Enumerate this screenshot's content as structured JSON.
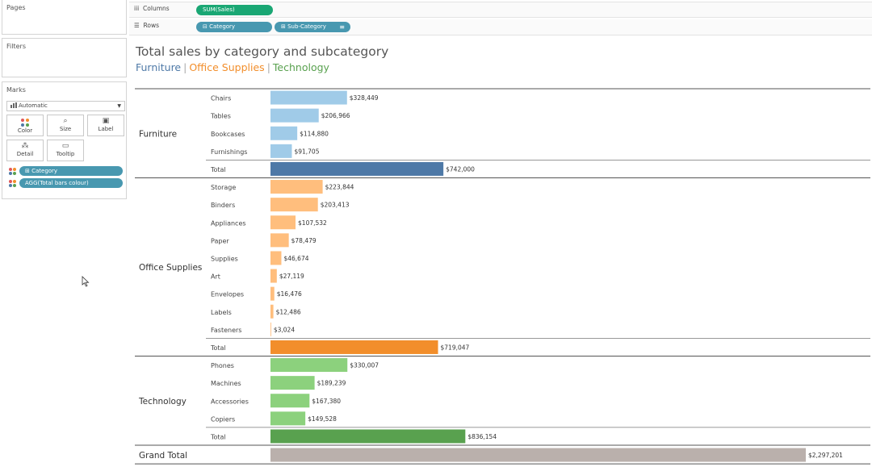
{
  "shelves": {
    "pages_title": "Pages",
    "filters_title": "Filters",
    "marks_title": "Marks",
    "mark_type": "Automatic",
    "mark_buttons": [
      {
        "label": "Color",
        "icon": "color-dots-icon"
      },
      {
        "label": "Size",
        "icon": "size-icon"
      },
      {
        "label": "Label",
        "icon": "label-icon"
      },
      {
        "label": "Detail",
        "icon": "detail-icon"
      },
      {
        "label": "Tooltip",
        "icon": "tooltip-icon"
      }
    ],
    "marks_pills": [
      "Category",
      "AGG(Total bars colour)"
    ],
    "columns_label": "Columns",
    "columns_pill": "SUM(Sales)",
    "rows_label": "Rows",
    "rows_pills": [
      "Category",
      "Sub-Category"
    ]
  },
  "colors": {
    "Furniture": "#4e79a7",
    "Office Supplies": "#f28e2b",
    "Technology": "#59a14f",
    "Furniture_light": "#a0cbe8",
    "Office Supplies_light": "#ffbe7d",
    "Technology_light": "#8cd17d",
    "grand_total": "#bab0ac",
    "pill_blue": "#4898b0",
    "pill_green": "#1aa774"
  },
  "chart_data": {
    "type": "bar",
    "orientation": "horizontal",
    "title": "Total sales by category and subcategory",
    "legend": [
      "Furniture",
      "Office Supplies",
      "Technology"
    ],
    "groups": [
      {
        "category": "Furniture",
        "items": [
          {
            "label": "Chairs",
            "value": 328449,
            "value_label": "$328,449"
          },
          {
            "label": "Tables",
            "value": 206966,
            "value_label": "$206,966"
          },
          {
            "label": "Bookcases",
            "value": 114880,
            "value_label": "$114,880"
          },
          {
            "label": "Furnishings",
            "value": 91705,
            "value_label": "$91,705"
          },
          {
            "label": "Total",
            "value": 742000,
            "value_label": "$742,000",
            "total": true
          }
        ]
      },
      {
        "category": "Office Supplies",
        "items": [
          {
            "label": "Storage",
            "value": 223844,
            "value_label": "$223,844"
          },
          {
            "label": "Binders",
            "value": 203413,
            "value_label": "$203,413"
          },
          {
            "label": "Appliances",
            "value": 107532,
            "value_label": "$107,532"
          },
          {
            "label": "Paper",
            "value": 78479,
            "value_label": "$78,479"
          },
          {
            "label": "Supplies",
            "value": 46674,
            "value_label": "$46,674"
          },
          {
            "label": "Art",
            "value": 27119,
            "value_label": "$27,119"
          },
          {
            "label": "Envelopes",
            "value": 16476,
            "value_label": "$16,476"
          },
          {
            "label": "Labels",
            "value": 12486,
            "value_label": "$12,486"
          },
          {
            "label": "Fasteners",
            "value": 3024,
            "value_label": "$3,024"
          },
          {
            "label": "Total",
            "value": 719047,
            "value_label": "$719,047",
            "total": true
          }
        ]
      },
      {
        "category": "Technology",
        "items": [
          {
            "label": "Phones",
            "value": 330007,
            "value_label": "$330,007"
          },
          {
            "label": "Machines",
            "value": 189239,
            "value_label": "$189,239"
          },
          {
            "label": "Accessories",
            "value": 167380,
            "value_label": "$167,380"
          },
          {
            "label": "Copiers",
            "value": 149528,
            "value_label": "$149,528"
          },
          {
            "label": "Total",
            "value": 836154,
            "value_label": "$836,154",
            "total": true
          }
        ]
      }
    ],
    "grand_total": {
      "label": "Grand Total",
      "value": 2297201,
      "value_label": "$2,297,201"
    }
  }
}
